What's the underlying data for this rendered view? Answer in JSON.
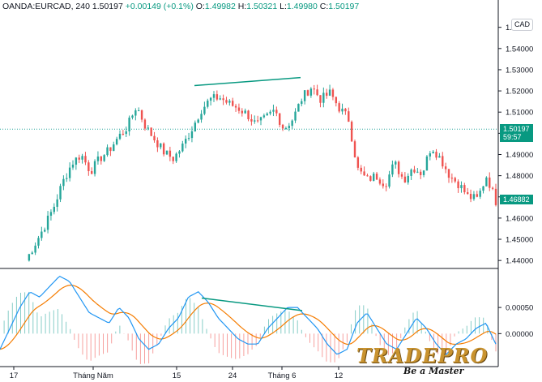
{
  "header": {
    "symbol": "OANDA:EURCAD, 240",
    "price": "1.50197",
    "change": "+0.00149 (+0.1%)",
    "open_label": "O:",
    "open": "1.49982",
    "high_label": "H:",
    "high": "1.50321",
    "low_label": "L:",
    "low": "1.49980",
    "close_label": "C:",
    "close": "1.50197"
  },
  "currency_label": "CAD",
  "price_axis_labels": [
    "1.55000",
    "1.54000",
    "1.53000",
    "1.52000",
    "1.51000",
    "1.50000",
    "1.49000",
    "1.48000",
    "1.47000",
    "1.46000",
    "1.45000",
    "1.44000"
  ],
  "current_price_tag": {
    "price": "1.50197",
    "countdown": "59:57"
  },
  "ma_tag": "1.46882",
  "indicator_axis_labels": [
    "0.00050",
    "0.00000"
  ],
  "time_axis_labels": [
    "17",
    "Tháng Năm",
    "15",
    "24",
    "Tháng 6",
    "12"
  ],
  "logo": {
    "name": "TRADEPRO",
    "tagline": "Be a Master"
  },
  "colors": {
    "up": "#26a69a",
    "down": "#ef5350",
    "signal": "#f57c00",
    "macd": "#2196f3",
    "trend_line": "#089981"
  },
  "chart_data": [
    {
      "type": "candlestick",
      "symbol": "EURCAD",
      "timeframe": "240",
      "ylim": [
        1.437,
        1.556
      ],
      "approx_close_path": [
        1.44,
        1.448,
        1.456,
        1.465,
        1.477,
        1.486,
        1.49,
        1.482,
        1.488,
        1.492,
        1.498,
        1.503,
        1.513,
        1.503,
        1.497,
        1.491,
        1.488,
        1.494,
        1.502,
        1.511,
        1.516,
        1.517,
        1.514,
        1.512,
        1.509,
        1.504,
        1.507,
        1.511,
        1.502,
        1.507,
        1.517,
        1.522,
        1.516,
        1.519,
        1.512,
        1.507,
        1.483,
        1.478,
        1.48,
        1.476,
        1.486,
        1.478,
        1.484,
        1.481,
        1.494,
        1.488,
        1.48,
        1.476,
        1.47,
        1.469,
        1.48,
        1.468
      ],
      "current_price": 1.50197,
      "price_line": 1.50197,
      "ma_value": 1.46882,
      "trend_line": {
        "from": 1.5225,
        "to": 1.5263
      }
    },
    {
      "type": "histogram",
      "name": "MACD",
      "ylim": [
        -0.0006,
        0.0012
      ],
      "macd": [
        -0.0003,
        0.0001,
        0.0005,
        0.0008,
        0.0007,
        0.0009,
        0.0011,
        0.001,
        0.0007,
        0.0004,
        0.0003,
        0.0002,
        0.0005,
        0.0003,
        -0.0001,
        -0.0003,
        -0.0002,
        0.0001,
        0.0003,
        0.0007,
        0.0008,
        0.0006,
        0.0003,
        0.0001,
        -0.0001,
        -0.0002,
        -0.0002,
        0.0001,
        0.0003,
        0.0005,
        0.0005,
        0.0003,
        0.0001,
        -0.0002,
        -0.0004,
        -0.0003,
        0.0002,
        0.0004,
        0.0001,
        -0.0002,
        -0.0003,
        0.0,
        0.0003,
        0.0001,
        -0.0002,
        -0.0004,
        -0.0002,
        -0.0001,
        0.0001,
        0.0002,
        -0.0002
      ],
      "trend_line": {
        "from": 0.00068,
        "to": 0.00044
      }
    }
  ]
}
